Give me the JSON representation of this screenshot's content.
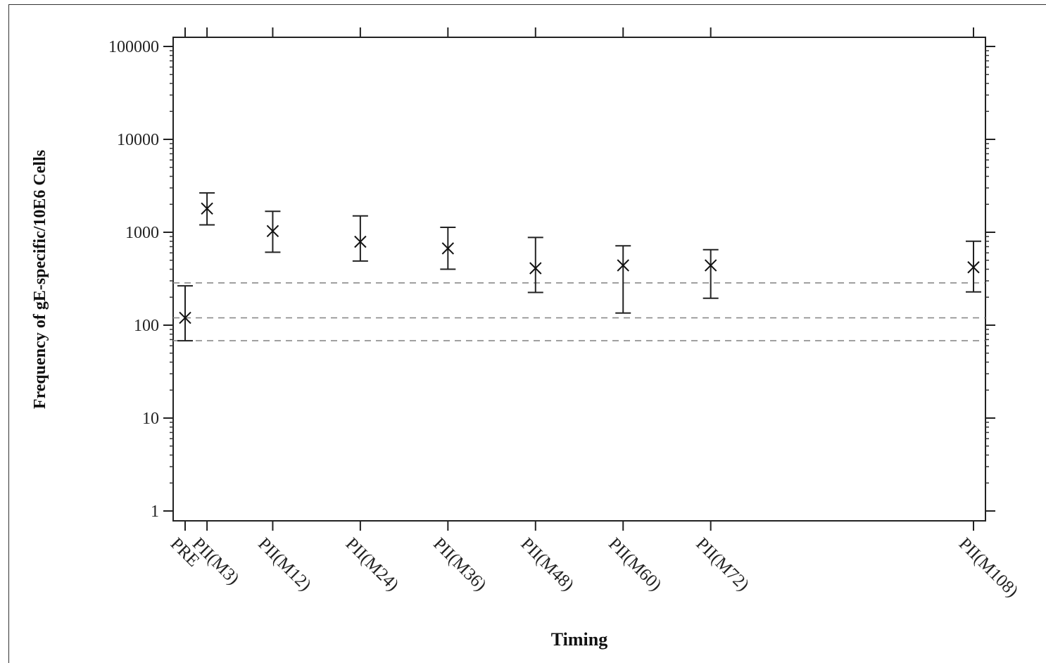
{
  "chart_data": {
    "type": "scatter",
    "title": "",
    "xlabel": "Timing",
    "ylabel": "Frequency of gE-specific/10E6 Cells",
    "y_scale": "log",
    "ylim": [
      1,
      100000
    ],
    "y_ticks": [
      "100000",
      "10000",
      "1000",
      "100",
      "10",
      "1"
    ],
    "y_tick_values": [
      100000,
      10000,
      1000,
      100,
      10,
      1
    ],
    "x_month": [
      0,
      3,
      12,
      24,
      36,
      48,
      60,
      72,
      108
    ],
    "categories": [
      "PRE",
      "PII(M3)",
      "PII(M12)",
      "PII(M24)",
      "PII(M36)",
      "PII(M48)",
      "PII(M60)",
      "PII(M72)",
      "PII(M108)"
    ],
    "series": [
      {
        "values": [
          120,
          1800,
          1030,
          790,
          670,
          410,
          440,
          440,
          420
        ],
        "ci_lower": [
          68,
          1200,
          610,
          490,
          400,
          225,
          135,
          195,
          228
        ],
        "ci_upper": [
          265,
          2650,
          1680,
          1500,
          1130,
          880,
          715,
          650,
          800
        ]
      }
    ],
    "reference_lines": [
      285,
      120,
      68
    ],
    "reference_line_style": "dashed",
    "grid": false,
    "legend": "none"
  }
}
